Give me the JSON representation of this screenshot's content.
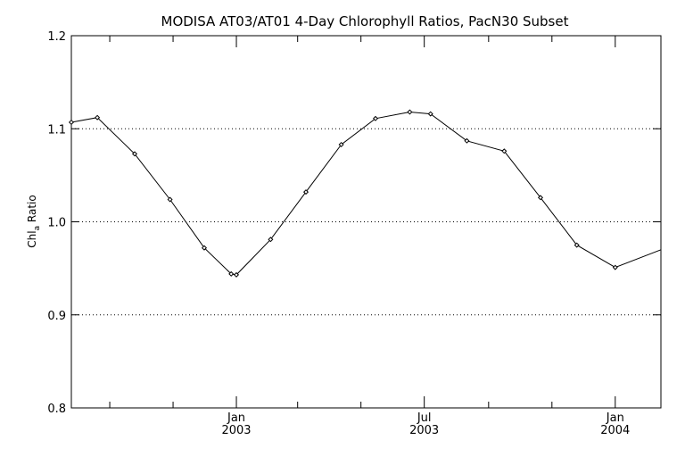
{
  "chart_data": {
    "type": "line",
    "title": "MODISA AT03/AT01 4-Day Chlorophyll Ratios, PacN30 Subset",
    "xlabel": "",
    "ylabel": {
      "main": "Chl",
      "sub": "a",
      "rest": " Ratio"
    },
    "ylim": [
      0.8,
      1.2
    ],
    "xlim": [
      "2002-07-26",
      "2004-02-14"
    ],
    "yticks": [
      "0.8",
      "0.9",
      "1.0",
      "1.1",
      "1.2"
    ],
    "grid_y": [
      0.9,
      1.0,
      1.1
    ],
    "xticks_major": [
      {
        "date": "2003-01-01",
        "line1": "Jan",
        "line2": "2003"
      },
      {
        "date": "2003-07-01",
        "line1": "Jul",
        "line2": "2003"
      },
      {
        "date": "2004-01-01",
        "line1": "Jan",
        "line2": "2004"
      }
    ],
    "xticks_minor": [
      "2002-09-01",
      "2002-11-01",
      "2003-03-01",
      "2003-05-01",
      "2003-09-01",
      "2003-11-01"
    ],
    "series": [
      {
        "x": [
          "2002-07-26",
          "2002-08-20",
          "2002-09-25",
          "2002-10-29",
          "2002-12-01",
          "2002-12-27",
          "2003-01-01",
          "2003-02-03",
          "2003-03-09",
          "2003-04-12",
          "2003-05-15",
          "2003-06-17",
          "2003-07-07",
          "2003-08-11",
          "2003-09-16",
          "2003-10-21",
          "2003-11-25",
          "2004-01-01",
          "2004-02-14"
        ],
        "y": [
          1.107,
          1.112,
          1.073,
          1.024,
          0.972,
          0.944,
          0.943,
          0.981,
          1.032,
          1.083,
          1.111,
          1.118,
          1.116,
          1.087,
          1.076,
          1.026,
          0.975,
          0.951,
          0.97
        ],
        "markers": [
          true,
          true,
          true,
          true,
          true,
          true,
          true,
          true,
          true,
          true,
          true,
          true,
          true,
          true,
          true,
          true,
          true,
          true,
          false
        ]
      }
    ]
  }
}
